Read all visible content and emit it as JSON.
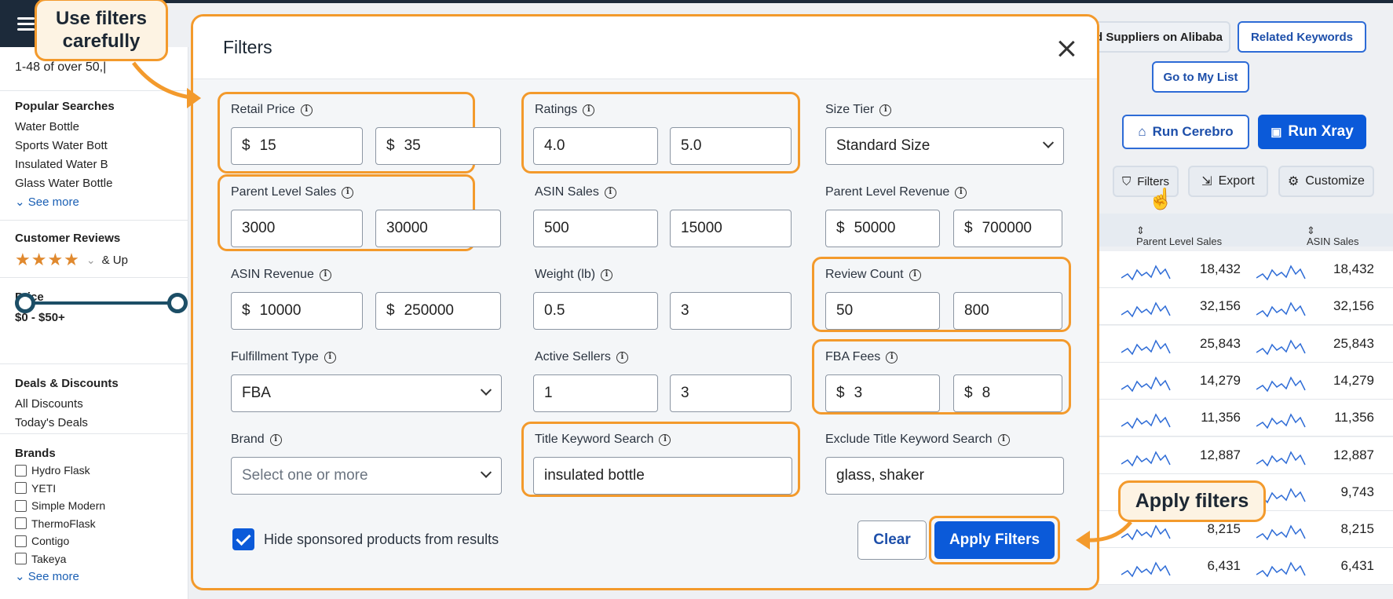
{
  "results_count": "1-48 of over 50,|",
  "sidebar": {
    "popular_searches": {
      "title": "Popular Searches",
      "items": [
        "Water Bottle",
        "Sports Water Bott",
        "Insulated Water B",
        "Glass Water Bottle"
      ],
      "see_more": "See more"
    },
    "customer_reviews": {
      "title": "Customer Reviews",
      "stars": "★★★★",
      "and_up": "& Up",
      "rating_value": 4
    },
    "price": {
      "title": "Price",
      "range": "$0 - $50+"
    },
    "deals": {
      "title": "Deals & Discounts",
      "items": [
        "All Discounts",
        "Today's Deals"
      ]
    },
    "brands": {
      "title": "Brands",
      "items": [
        "Hydro Flask",
        "YETI",
        "Simple Modern",
        "ThermoFlask",
        "Contigo",
        "Takeya"
      ],
      "see_more": "See more"
    }
  },
  "toolbar": {
    "find_suppliers": "d Suppliers on Alibaba",
    "related_keywords": "Related Keywords",
    "go_to_list": "Go to My List",
    "run_cerebro": "Run Cerebro",
    "run_xray": "Run Xray",
    "filters": "Filters",
    "export": "Export",
    "customize": "Customize"
  },
  "table": {
    "headers": [
      "Parent Level Sales",
      "ASIN Sales"
    ],
    "rows": [
      [
        "18,432",
        "18,432"
      ],
      [
        "32,156",
        "32,156"
      ],
      [
        "25,843",
        "25,843"
      ],
      [
        "14,279",
        "14,279"
      ],
      [
        "11,356",
        "11,356"
      ],
      [
        "12,887",
        "12,887"
      ],
      [
        "",
        "9,743"
      ],
      [
        "8,215",
        "8,215"
      ],
      [
        "6,431",
        "6,431"
      ]
    ]
  },
  "modal": {
    "title": "Filters",
    "filters": {
      "retail_price": {
        "label": "Retail Price",
        "min": "15",
        "max": "35"
      },
      "ratings": {
        "label": "Ratings",
        "min": "4.0",
        "max": "5.0"
      },
      "size_tier": {
        "label": "Size Tier",
        "value": "Standard Size"
      },
      "parent_level_sales": {
        "label": "Parent Level Sales",
        "min": "3000",
        "max": "30000"
      },
      "asin_sales": {
        "label": "ASIN Sales",
        "min": "500",
        "max": "15000"
      },
      "parent_level_revenue": {
        "label": "Parent Level Revenue",
        "min": "50000",
        "max": "700000"
      },
      "asin_revenue": {
        "label": "ASIN Revenue",
        "min": "10000",
        "max": "250000"
      },
      "weight": {
        "label": "Weight (lb)",
        "min": "0.5",
        "max": "3"
      },
      "review_count": {
        "label": "Review Count",
        "min": "50",
        "max": "800"
      },
      "fulfillment_type": {
        "label": "Fulfillment Type",
        "value": "FBA"
      },
      "active_sellers": {
        "label": "Active Sellers",
        "min": "1",
        "max": "3"
      },
      "fba_fees": {
        "label": "FBA Fees",
        "min": "3",
        "max": "8"
      },
      "brand": {
        "label": "Brand",
        "placeholder": "Select one or more"
      },
      "title_keyword": {
        "label": "Title Keyword Search",
        "value": "insulated bottle"
      },
      "exclude_title_keyword": {
        "label": "Exclude Title Keyword Search",
        "value": "glass, shaker"
      }
    },
    "hide_sponsored": "Hide sponsored products from results",
    "clear": "Clear",
    "apply": "Apply Filters"
  },
  "callouts": {
    "use_filters": "Use filters carefully",
    "apply_filters": "Apply filters"
  },
  "currency": "$",
  "colors": {
    "accent_orange": "#f39a2c",
    "primary_blue": "#0b5ad9",
    "dark_nav": "#1c2a3a"
  }
}
